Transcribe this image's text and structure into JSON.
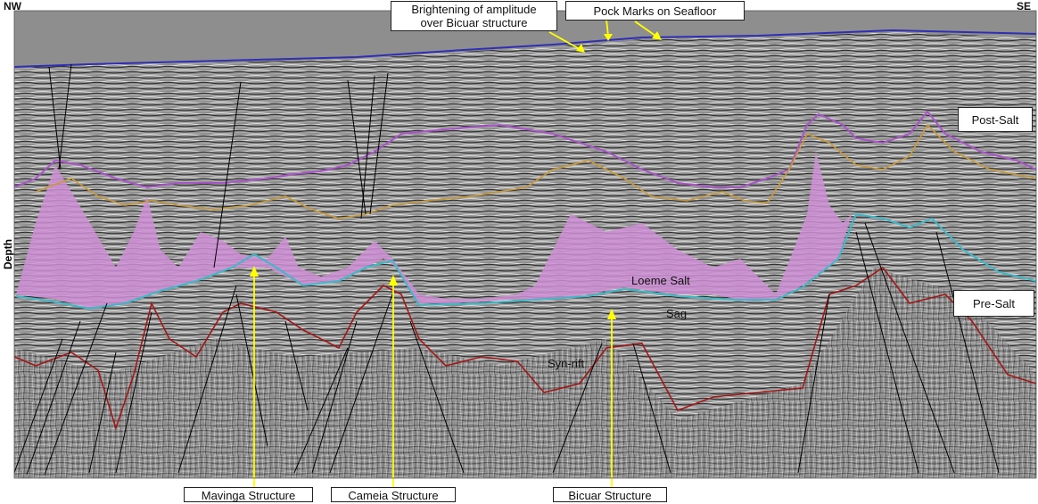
{
  "orientation": {
    "left": "NW",
    "right": "SE"
  },
  "axis": {
    "vertical_label": "Depth"
  },
  "callouts": {
    "brightening": "Brightening of amplitude over Bicuar structure",
    "pock_marks": "Pock Marks on Seafloor",
    "post_salt": "Post-Salt",
    "pre_salt": "Pre-Salt"
  },
  "units": {
    "loeme_salt": "Loeme Salt",
    "sag": "Sag",
    "syn_rift": "Syn-rift"
  },
  "structures": [
    "Mavinga Structure",
    "Cameia Structure",
    "Bicuar Structure"
  ],
  "colors": {
    "seafloor": "#2f2fb4",
    "top_salt": "#a855c8",
    "salt_fill": "#cf8fd6",
    "post_salt_horizon": "#c99a3a",
    "base_salt": "#40b8c8",
    "rift_horizon": "#a01818",
    "arrows": "#ffff00",
    "faults": "#000000"
  }
}
